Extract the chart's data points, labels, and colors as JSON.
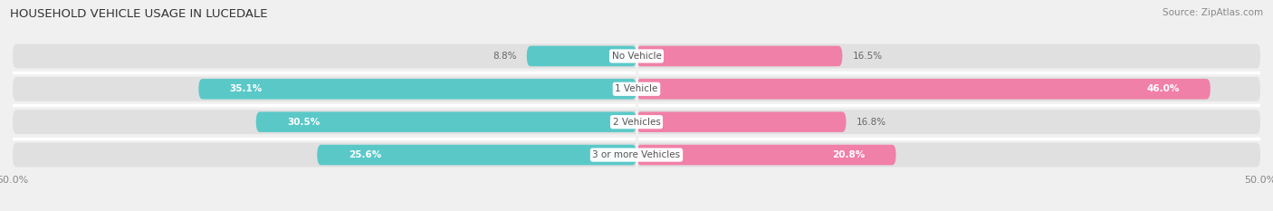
{
  "title": "HOUSEHOLD VEHICLE USAGE IN LUCEDALE",
  "source": "Source: ZipAtlas.com",
  "categories": [
    "No Vehicle",
    "1 Vehicle",
    "2 Vehicles",
    "3 or more Vehicles"
  ],
  "owner_values": [
    8.8,
    35.1,
    30.5,
    25.6
  ],
  "renter_values": [
    16.5,
    46.0,
    16.8,
    20.8
  ],
  "owner_color": "#5bc8c8",
  "renter_color": "#f080a8",
  "xlim": [
    -50,
    50
  ],
  "xtick_labels": [
    "50.0%",
    "50.0%"
  ],
  "background_color": "#f0f0f0",
  "bar_bg_color": "#e0e0e0",
  "title_fontsize": 9.5,
  "source_fontsize": 7.5,
  "label_fontsize": 7.5,
  "tick_fontsize": 8,
  "cat_fontsize": 7.5
}
